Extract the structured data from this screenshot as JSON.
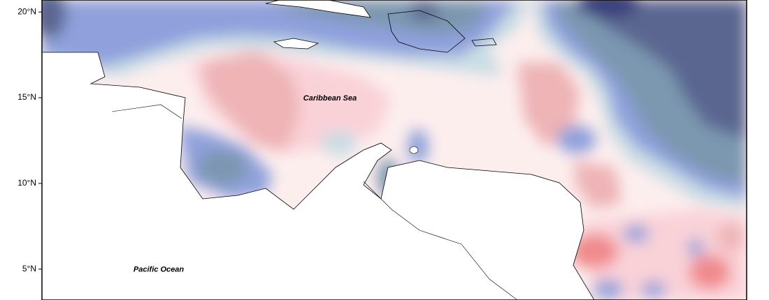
{
  "map": {
    "ylim": [
      3.2,
      20.7
    ],
    "yticks": [
      {
        "value": 20,
        "label": "20°N"
      },
      {
        "value": 15,
        "label": "15°N"
      },
      {
        "value": 10,
        "label": "10°N"
      },
      {
        "value": 5,
        "label": "5°N"
      }
    ],
    "labels": [
      {
        "text": "Caribbean Sea",
        "lat": 15
      },
      {
        "text": "Pacific Ocean",
        "lat": 5
      }
    ]
  }
}
